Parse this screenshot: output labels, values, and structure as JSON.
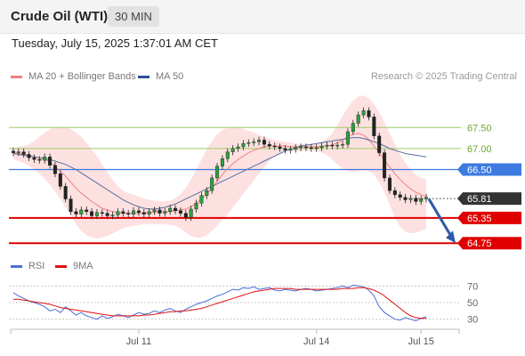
{
  "header": {
    "instrument": "Crude Oil (WTI)",
    "interval": "30 MIN",
    "timestamp": "Tuesday, July 15, 2025 1:37:01 AM CET"
  },
  "legend": [
    {
      "label": "MA 20 + Bollinger Bands",
      "color": "#f08080"
    },
    {
      "label": "MA 50",
      "color": "#2f4f8f"
    }
  ],
  "credit": "Research © 2025 Trading Central",
  "rsi_legend": [
    {
      "label": "RSI",
      "color": "#4a6fd8"
    },
    {
      "label": "9MA",
      "color": "#e01010"
    }
  ],
  "chart_data": {
    "type": "candlestick",
    "x_tick_labels": [
      "Jul 11",
      "Jul 14",
      "Jul 15"
    ],
    "price_range": [
      64.5,
      68.5
    ],
    "levels": [
      {
        "value": 67.5,
        "label": "67.50",
        "color": "#9ccc65",
        "style": "thin-line",
        "label_style": "text"
      },
      {
        "value": 67.0,
        "label": "67.00",
        "color": "#9ccc65",
        "style": "thin-line",
        "label_style": "text"
      },
      {
        "value": 66.5,
        "label": "66.50",
        "color": "#3d7be0",
        "style": "line",
        "label_style": "tag"
      },
      {
        "value": 65.81,
        "label": "65.81",
        "color": "#333333",
        "style": "dotted",
        "label_style": "tag"
      },
      {
        "value": 65.35,
        "label": "65.35",
        "color": "#e00000",
        "style": "thick-line",
        "label_style": "tag"
      },
      {
        "value": 64.75,
        "label": "64.75",
        "color": "#e00000",
        "style": "thick-line",
        "label_style": "tag"
      }
    ],
    "close": [
      66.9,
      66.92,
      66.86,
      66.78,
      66.74,
      66.72,
      66.8,
      66.6,
      66.4,
      66.1,
      65.8,
      65.5,
      65.44,
      65.54,
      65.5,
      65.4,
      65.48,
      65.46,
      65.4,
      65.42,
      65.5,
      65.46,
      65.44,
      65.52,
      65.48,
      65.44,
      65.5,
      65.54,
      65.46,
      65.5,
      65.58,
      65.52,
      65.46,
      65.36,
      65.56,
      65.7,
      65.88,
      66.0,
      66.3,
      66.58,
      66.76,
      66.92,
      67.0,
      67.04,
      67.12,
      67.14,
      67.16,
      67.2,
      67.1,
      67.06,
      67.04,
      67.0,
      66.96,
      66.98,
      67.02,
      67.04,
      67.02,
      67.0,
      67.02,
      67.06,
      67.08,
      67.06,
      67.08,
      67.1,
      67.4,
      67.6,
      67.8,
      67.9,
      67.75,
      67.3,
      66.9,
      66.3,
      66.0,
      65.9,
      65.84,
      65.78,
      65.82,
      65.74,
      65.8,
      65.84
    ],
    "ma20": [
      66.9,
      66.88,
      66.86,
      66.84,
      66.8,
      66.78,
      66.74,
      66.68,
      66.58,
      66.46,
      66.34,
      66.2,
      66.06,
      65.94,
      65.84,
      65.74,
      65.66,
      65.58,
      65.54,
      65.5,
      65.48,
      65.46,
      65.46,
      65.46,
      65.46,
      65.46,
      65.48,
      65.48,
      65.5,
      65.5,
      65.5,
      65.52,
      65.54,
      65.56,
      65.62,
      65.7,
      65.8,
      65.92,
      66.06,
      66.22,
      66.38,
      66.52,
      66.64,
      66.74,
      66.82,
      66.9,
      66.96,
      67.0,
      67.04,
      67.06,
      67.06,
      67.06,
      67.06,
      67.04,
      67.04,
      67.04,
      67.04,
      67.04,
      67.04,
      67.04,
      67.06,
      67.08,
      67.14,
      67.2,
      67.28,
      67.34,
      67.36,
      67.32,
      67.22,
      67.06,
      66.9,
      66.72,
      66.56,
      66.4,
      66.26,
      66.14,
      66.04,
      65.96,
      65.9,
      65.86
    ],
    "bb_upper": [
      67.0,
      67.04,
      67.06,
      67.1,
      67.18,
      67.28,
      67.38,
      67.46,
      67.5,
      67.52,
      67.5,
      67.46,
      67.38,
      67.28,
      67.14,
      66.98,
      66.82,
      66.62,
      66.44,
      66.26,
      66.1,
      66.0,
      65.94,
      65.9,
      65.86,
      65.82,
      65.78,
      65.76,
      65.74,
      65.74,
      65.76,
      65.82,
      65.92,
      66.06,
      66.26,
      66.5,
      66.74,
      66.98,
      67.18,
      67.34,
      67.44,
      67.5,
      67.52,
      67.5,
      67.46,
      67.42,
      67.38,
      67.32,
      67.28,
      67.24,
      67.2,
      67.18,
      67.16,
      67.14,
      67.12,
      67.1,
      67.1,
      67.1,
      67.12,
      67.16,
      67.24,
      67.36,
      67.56,
      67.78,
      67.98,
      68.14,
      68.24,
      68.26,
      68.2,
      68.06,
      67.86,
      67.62,
      67.36,
      67.1,
      66.86,
      66.66,
      66.5,
      66.38,
      66.3,
      66.26
    ],
    "bb_lower": [
      66.74,
      66.7,
      66.66,
      66.58,
      66.5,
      66.4,
      66.28,
      66.14,
      65.98,
      65.8,
      65.6,
      65.4,
      65.2,
      65.04,
      64.94,
      64.88,
      64.86,
      64.88,
      64.92,
      64.98,
      65.04,
      65.1,
      65.14,
      65.16,
      65.18,
      65.2,
      65.2,
      65.2,
      65.2,
      65.2,
      65.18,
      65.16,
      65.1,
      65.0,
      64.92,
      64.88,
      64.88,
      64.94,
      65.04,
      65.16,
      65.3,
      65.44,
      65.6,
      65.76,
      65.92,
      66.08,
      66.24,
      66.4,
      66.56,
      66.7,
      66.82,
      66.9,
      66.94,
      66.94,
      66.94,
      66.94,
      66.96,
      66.96,
      66.94,
      66.9,
      66.84,
      66.74,
      66.62,
      66.52,
      66.46,
      66.44,
      66.46,
      66.48,
      66.46,
      66.38,
      66.2,
      65.96,
      65.66,
      65.36,
      65.14,
      65.02,
      64.98,
      65.0,
      65.04,
      65.1
    ],
    "ma50": [
      66.88,
      66.86,
      66.84,
      66.82,
      66.8,
      66.78,
      66.76,
      66.74,
      66.7,
      66.66,
      66.62,
      66.56,
      66.5,
      66.42,
      66.34,
      66.26,
      66.18,
      66.1,
      66.02,
      65.94,
      65.86,
      65.78,
      65.72,
      65.66,
      65.62,
      65.58,
      65.56,
      65.56,
      65.58,
      65.6,
      65.64,
      65.68,
      65.74,
      65.8,
      65.86,
      65.92,
      65.98,
      66.04,
      66.1,
      66.16,
      66.22,
      66.28,
      66.34,
      66.4,
      66.46,
      66.52,
      66.58,
      66.64,
      66.7,
      66.76,
      66.82,
      66.88,
      66.94,
      66.98,
      67.02,
      67.06,
      67.08,
      67.1,
      67.12,
      67.14,
      67.16,
      67.18,
      67.2,
      67.22,
      67.24,
      67.26,
      67.26,
      67.24,
      67.2,
      67.16,
      67.12,
      67.06,
      67.0,
      66.96,
      66.92,
      66.88,
      66.86,
      66.84,
      66.82,
      66.8
    ],
    "forecast_arrow": {
      "from": 65.8,
      "to": 64.75
    },
    "rsi": {
      "levels": [
        70,
        50,
        30
      ],
      "range": [
        20,
        80
      ],
      "rsi": [
        62,
        58,
        55,
        52,
        50,
        48,
        45,
        40,
        42,
        38,
        45,
        40,
        35,
        38,
        34,
        32,
        30,
        34,
        31,
        33,
        36,
        34,
        32,
        35,
        38,
        36,
        37,
        40,
        38,
        41,
        43,
        40,
        38,
        42,
        45,
        48,
        50,
        52,
        55,
        58,
        60,
        63,
        66,
        65,
        68,
        67,
        69,
        66,
        67,
        68,
        65,
        64,
        66,
        65,
        64,
        66,
        67,
        66,
        64,
        65,
        66,
        67,
        68,
        70,
        68,
        71,
        70,
        69,
        65,
        58,
        45,
        38,
        34,
        30,
        29,
        32,
        30,
        28,
        31,
        33
      ],
      "ma9": [
        54,
        54,
        53,
        52,
        51,
        50,
        49,
        48,
        46,
        44,
        43,
        42,
        41,
        40,
        39,
        38,
        37,
        36,
        35,
        34,
        34,
        34,
        34,
        34,
        34,
        35,
        35,
        36,
        37,
        38,
        39,
        39,
        40,
        40,
        41,
        42,
        43,
        45,
        47,
        49,
        51,
        53,
        55,
        57,
        59,
        61,
        63,
        64,
        65,
        66,
        67,
        67,
        67,
        67,
        66,
        66,
        66,
        66,
        66,
        66,
        66,
        66,
        66,
        67,
        67,
        67,
        68,
        68,
        67,
        65,
        62,
        58,
        53,
        48,
        43,
        38,
        34,
        32,
        31,
        31
      ]
    }
  }
}
